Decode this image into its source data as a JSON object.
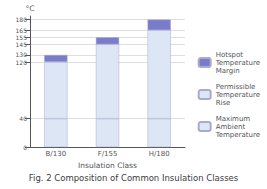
{
  "chart_data": {
    "type": "bar",
    "title": "Fig. 2 Composition of Common Insulation Classes",
    "xlabel": "Insulation Class",
    "ylabel": "°C",
    "categories": [
      "B/130",
      "F/155",
      "H/180"
    ],
    "series": [
      {
        "name": "Maximum\nAmbient\nTemperature",
        "color": "#dce6f5",
        "values": [
          40,
          40,
          40
        ]
      },
      {
        "name": "Permissible\nTemperature\nRise",
        "color": "#dce6f5",
        "values": [
          80,
          105,
          125
        ]
      },
      {
        "name": "Hotspot\nTemperature\nMargin",
        "color": "#7b7bcc",
        "values": [
          10,
          10,
          15
        ]
      }
    ],
    "stacked": true,
    "ylim": [
      0,
      185
    ],
    "yticks": [
      0,
      40,
      120,
      130,
      145,
      155,
      165,
      180
    ],
    "grid": true,
    "legend": "right"
  }
}
